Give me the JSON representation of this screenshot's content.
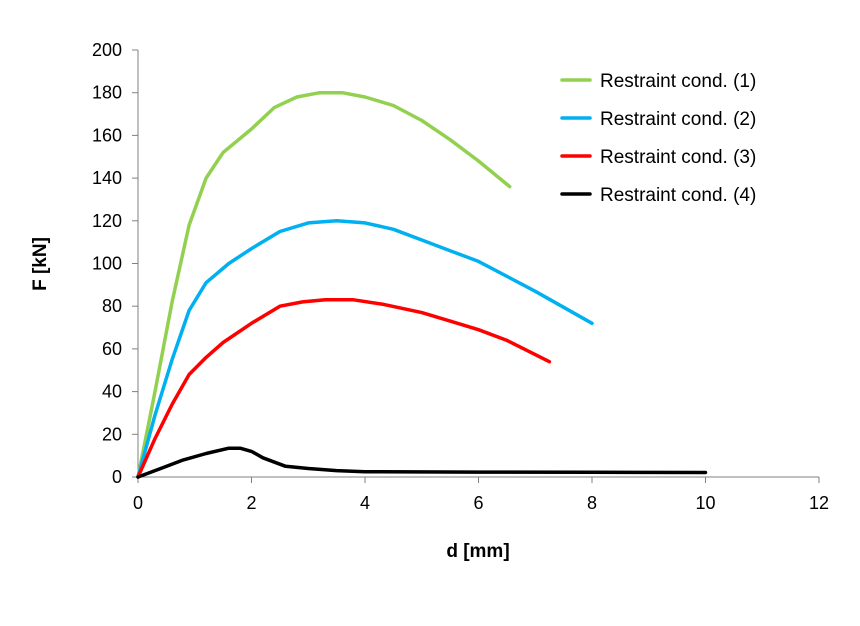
{
  "chart_data": {
    "type": "line",
    "xlabel": "d [mm]",
    "ylabel": "F [kN]",
    "xlim": [
      0,
      12
    ],
    "ylim": [
      0,
      200
    ],
    "xticks": [
      0,
      2,
      4,
      6,
      8,
      10,
      12
    ],
    "yticks": [
      0,
      20,
      40,
      60,
      80,
      100,
      120,
      140,
      160,
      180,
      200
    ],
    "grid": false,
    "legend_position": "top-right",
    "series": [
      {
        "name": "Restraint cond. (1)",
        "color": "#92D050",
        "points": [
          [
            0,
            0
          ],
          [
            0.3,
            40
          ],
          [
            0.6,
            82
          ],
          [
            0.9,
            118
          ],
          [
            1.2,
            140
          ],
          [
            1.5,
            152
          ],
          [
            2.0,
            163
          ],
          [
            2.4,
            173
          ],
          [
            2.8,
            178
          ],
          [
            3.2,
            180
          ],
          [
            3.6,
            180
          ],
          [
            4.0,
            178
          ],
          [
            4.5,
            174
          ],
          [
            5.0,
            167
          ],
          [
            5.5,
            158
          ],
          [
            6.0,
            148
          ],
          [
            6.55,
            136
          ]
        ]
      },
      {
        "name": "Restraint cond. (2)",
        "color": "#00B0F0",
        "points": [
          [
            0,
            0
          ],
          [
            0.3,
            29
          ],
          [
            0.6,
            55
          ],
          [
            0.9,
            78
          ],
          [
            1.2,
            91
          ],
          [
            1.6,
            100
          ],
          [
            2.0,
            107
          ],
          [
            2.5,
            115
          ],
          [
            3.0,
            119
          ],
          [
            3.5,
            120
          ],
          [
            4.0,
            119
          ],
          [
            4.5,
            116
          ],
          [
            5.0,
            111
          ],
          [
            5.5,
            106
          ],
          [
            6.0,
            101
          ],
          [
            7.0,
            87
          ],
          [
            8.0,
            72
          ]
        ]
      },
      {
        "name": "Restraint cond. (3)",
        "color": "#FF0000",
        "points": [
          [
            0,
            0
          ],
          [
            0.3,
            18
          ],
          [
            0.6,
            34
          ],
          [
            0.9,
            48
          ],
          [
            1.2,
            56
          ],
          [
            1.5,
            63
          ],
          [
            2.0,
            72
          ],
          [
            2.5,
            80
          ],
          [
            2.9,
            82
          ],
          [
            3.3,
            83
          ],
          [
            3.8,
            83
          ],
          [
            4.3,
            81
          ],
          [
            5.0,
            77
          ],
          [
            5.5,
            73
          ],
          [
            6.0,
            69
          ],
          [
            6.5,
            64
          ],
          [
            7.25,
            54
          ]
        ]
      },
      {
        "name": "Restraint cond. (4)",
        "color": "#000000",
        "points": [
          [
            0,
            0
          ],
          [
            0.4,
            4
          ],
          [
            0.8,
            8
          ],
          [
            1.2,
            11
          ],
          [
            1.6,
            13.5
          ],
          [
            1.8,
            13.5
          ],
          [
            2.0,
            12
          ],
          [
            2.2,
            9
          ],
          [
            2.6,
            5
          ],
          [
            3.0,
            4
          ],
          [
            3.5,
            3
          ],
          [
            4.0,
            2.5
          ],
          [
            6.0,
            2.3
          ],
          [
            8.0,
            2.2
          ],
          [
            10.0,
            2.1
          ]
        ]
      }
    ]
  }
}
